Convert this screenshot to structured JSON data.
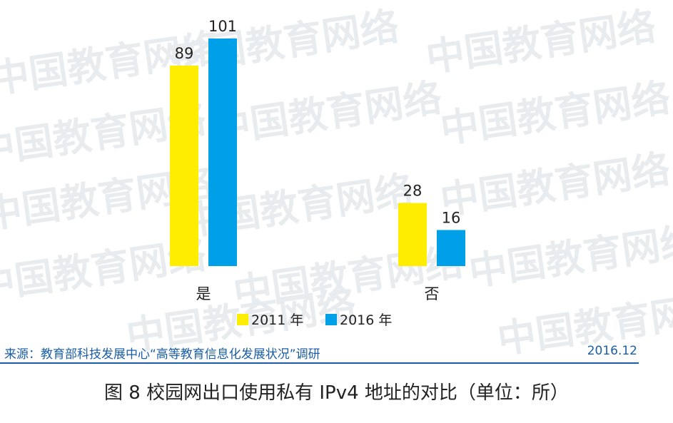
{
  "chart_data": {
    "type": "bar",
    "categories": [
      "是",
      "否"
    ],
    "series": [
      {
        "name": "2011 年",
        "values": [
          89,
          28
        ],
        "color": "#ffed00"
      },
      {
        "name": "2016 年",
        "values": [
          101,
          16
        ],
        "color": "#00a0e9"
      }
    ],
    "legend_position": "bottom",
    "grid": false,
    "ylim": [
      0,
      101
    ]
  },
  "watermark_text": "中国教育网络",
  "source": {
    "label": "来源：教育部科技发展中心“高等教育信息化发展状况”调研",
    "date": "2016.12"
  },
  "caption": "图 8  校园网出口使用私有 IPv4 地址的对比（单位：所）"
}
